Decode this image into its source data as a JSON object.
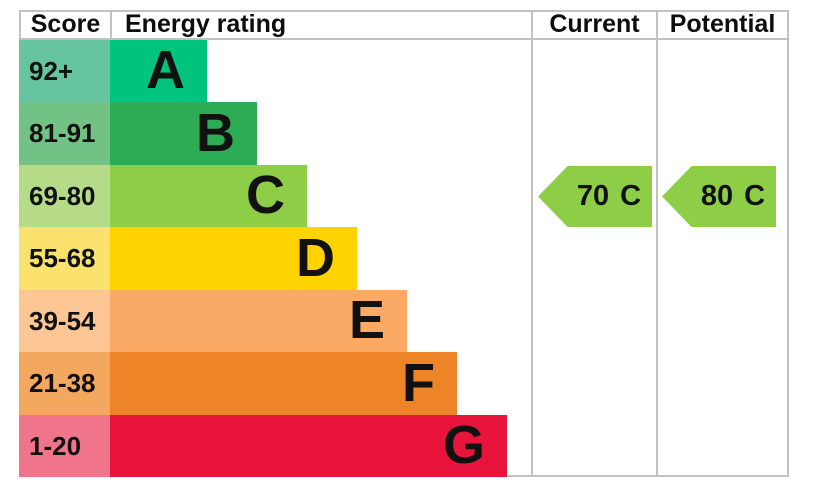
{
  "chart_data": {
    "type": "bar",
    "title": "Energy rating",
    "columns": [
      "Score",
      "Energy rating",
      "Current",
      "Potential"
    ],
    "bands": [
      {
        "letter": "A",
        "score": "92+",
        "color": "#00C37E",
        "tint": "#66C5A0"
      },
      {
        "letter": "B",
        "score": "81-91",
        "color": "#2BAC55",
        "tint": "#72C185"
      },
      {
        "letter": "C",
        "score": "69-80",
        "color": "#8DCE46",
        "tint": "#B5DB88"
      },
      {
        "letter": "D",
        "score": "55-68",
        "color": "#FFD300",
        "tint": "#FBE26E"
      },
      {
        "letter": "E",
        "score": "39-54",
        "color": "#FAAA64",
        "tint": "#FDC795"
      },
      {
        "letter": "F",
        "score": "21-38",
        "color": "#EE8428",
        "tint": "#F3A75F"
      },
      {
        "letter": "G",
        "score": "1-20",
        "color": "#E9143C",
        "tint": "#F0758B"
      }
    ],
    "current": {
      "label": "Current",
      "value": "70",
      "band": "C",
      "color": "#8DCE46"
    },
    "potential": {
      "label": "Potential",
      "value": "80",
      "band": "C",
      "color": "#8DCE46"
    },
    "border_color": "#C2C2C2",
    "legend_position": "none",
    "grid": false
  }
}
